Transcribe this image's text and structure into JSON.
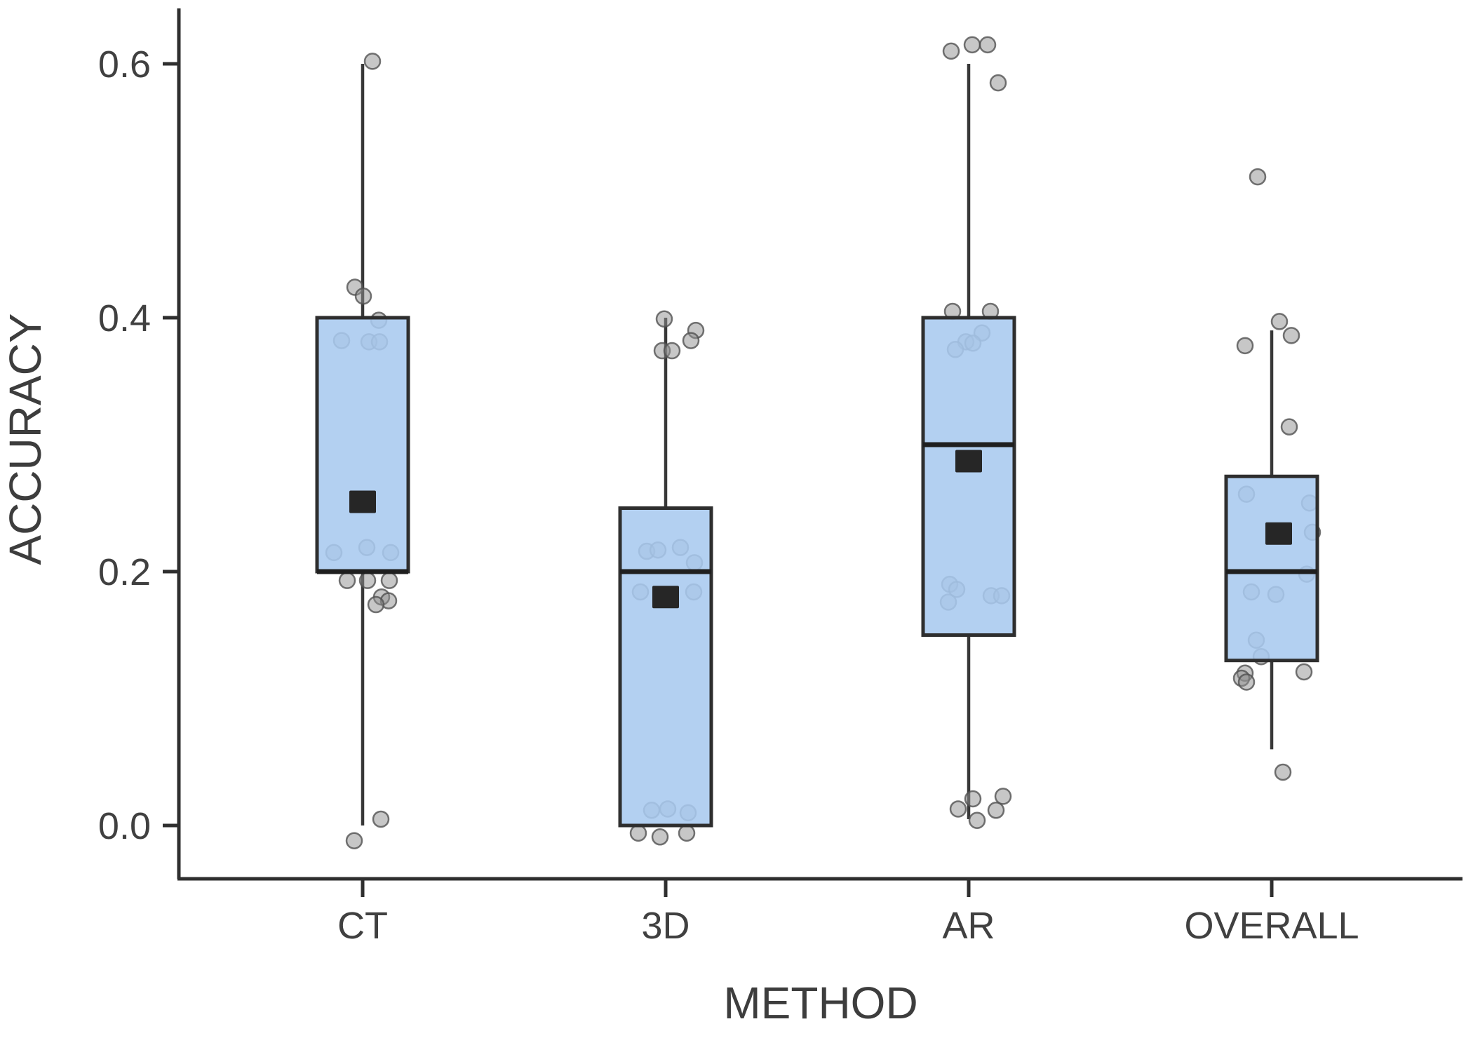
{
  "figure": {
    "background": "#ffffff"
  },
  "chart_data": {
    "type": "boxplot",
    "title": "",
    "xlabel": "METHOD",
    "ylabel": "ACCURACY",
    "categories": [
      "CT",
      "3D",
      "AR",
      "OVERALL"
    ],
    "legend_position": "none",
    "grid": false,
    "y_axis": {
      "ticks": [
        0.0,
        0.2,
        0.4,
        0.6
      ],
      "tick_labels": [
        "0.0",
        "0.2",
        "0.4",
        "0.6"
      ],
      "range_shown": [
        -0.04,
        0.64
      ]
    },
    "colors": {
      "box_fill": "#a8caef",
      "box_border": "#2e2e2e",
      "median": "#1f1f1f",
      "mean_marker": "#262626",
      "whisker": "#383838",
      "point_fill": "#8f8f8f",
      "point_stroke": "#515151",
      "axis": "#2f2f2f",
      "text": "#3d3d3d"
    },
    "series": [
      {
        "label": "CT",
        "q1": 0.2,
        "median": 0.2,
        "q3": 0.4,
        "whisker_low": 0.0,
        "whisker_high": 0.6,
        "mean": 0.255,
        "mean_dx": 0,
        "points": [
          {
            "v": 0.602,
            "dx": 14
          },
          {
            "v": 0.424,
            "dx": -11
          },
          {
            "v": 0.417,
            "dx": 1
          },
          {
            "v": 0.398,
            "dx": 23
          },
          {
            "v": 0.382,
            "dx": -30
          },
          {
            "v": 0.381,
            "dx": 9
          },
          {
            "v": 0.381,
            "dx": 24
          },
          {
            "v": 0.219,
            "dx": 6
          },
          {
            "v": 0.215,
            "dx": -41
          },
          {
            "v": 0.215,
            "dx": 40
          },
          {
            "v": 0.193,
            "dx": -22
          },
          {
            "v": 0.193,
            "dx": 7
          },
          {
            "v": 0.193,
            "dx": 38
          },
          {
            "v": 0.18,
            "dx": 27
          },
          {
            "v": 0.177,
            "dx": 37
          },
          {
            "v": 0.174,
            "dx": 19
          },
          {
            "v": 0.005,
            "dx": 26
          },
          {
            "v": -0.012,
            "dx": -12
          }
        ]
      },
      {
        "label": "3D",
        "q1": 0.0,
        "median": 0.2,
        "q3": 0.25,
        "whisker_low": 0.0,
        "whisker_high": 0.4,
        "mean": 0.18,
        "mean_dx": 0,
        "points": [
          {
            "v": 0.399,
            "dx": -2
          },
          {
            "v": 0.39,
            "dx": 43
          },
          {
            "v": 0.382,
            "dx": 36
          },
          {
            "v": 0.374,
            "dx": -5
          },
          {
            "v": 0.374,
            "dx": 9
          },
          {
            "v": 0.216,
            "dx": -27
          },
          {
            "v": 0.217,
            "dx": -11
          },
          {
            "v": 0.219,
            "dx": 21
          },
          {
            "v": 0.207,
            "dx": 41
          },
          {
            "v": 0.184,
            "dx": -36
          },
          {
            "v": 0.184,
            "dx": 40
          },
          {
            "v": 0.012,
            "dx": -20
          },
          {
            "v": 0.013,
            "dx": 3
          },
          {
            "v": 0.01,
            "dx": 32
          },
          {
            "v": -0.006,
            "dx": -39
          },
          {
            "v": -0.009,
            "dx": -8
          },
          {
            "v": -0.006,
            "dx": 30
          }
        ]
      },
      {
        "label": "AR",
        "q1": 0.15,
        "median": 0.3,
        "q3": 0.4,
        "whisker_low": 0.005,
        "whisker_high": 0.6,
        "mean": 0.287,
        "mean_dx": 0,
        "points": [
          {
            "v": 0.615,
            "dx": 5
          },
          {
            "v": 0.615,
            "dx": 27
          },
          {
            "v": 0.61,
            "dx": -25
          },
          {
            "v": 0.585,
            "dx": 42
          },
          {
            "v": 0.405,
            "dx": -23
          },
          {
            "v": 0.405,
            "dx": 31
          },
          {
            "v": 0.388,
            "dx": 19
          },
          {
            "v": 0.381,
            "dx": -4
          },
          {
            "v": 0.38,
            "dx": 6
          },
          {
            "v": 0.375,
            "dx": -19
          },
          {
            "v": 0.19,
            "dx": -27
          },
          {
            "v": 0.186,
            "dx": -17
          },
          {
            "v": 0.176,
            "dx": -29
          },
          {
            "v": 0.181,
            "dx": 32
          },
          {
            "v": 0.181,
            "dx": 47
          },
          {
            "v": 0.021,
            "dx": 6
          },
          {
            "v": 0.023,
            "dx": 49
          },
          {
            "v": 0.013,
            "dx": -15
          },
          {
            "v": 0.012,
            "dx": 39
          },
          {
            "v": 0.004,
            "dx": 12
          }
        ]
      },
      {
        "label": "OVERALL",
        "q1": 0.13,
        "median": 0.2,
        "q3": 0.275,
        "whisker_low": 0.06,
        "whisker_high": 0.39,
        "mean": 0.23,
        "mean_dx": 10,
        "points": [
          {
            "v": 0.511,
            "dx": -20
          },
          {
            "v": 0.397,
            "dx": 11
          },
          {
            "v": 0.386,
            "dx": 28
          },
          {
            "v": 0.378,
            "dx": -38
          },
          {
            "v": 0.314,
            "dx": 25
          },
          {
            "v": 0.261,
            "dx": -36
          },
          {
            "v": 0.254,
            "dx": 54
          },
          {
            "v": 0.231,
            "dx": 58
          },
          {
            "v": 0.198,
            "dx": 50
          },
          {
            "v": 0.184,
            "dx": -29
          },
          {
            "v": 0.182,
            "dx": 6
          },
          {
            "v": 0.146,
            "dx": -22
          },
          {
            "v": 0.133,
            "dx": -15
          },
          {
            "v": 0.12,
            "dx": -38
          },
          {
            "v": 0.116,
            "dx": -43
          },
          {
            "v": 0.113,
            "dx": -36
          },
          {
            "v": 0.121,
            "dx": 46
          },
          {
            "v": 0.042,
            "dx": 16
          }
        ]
      }
    ]
  }
}
